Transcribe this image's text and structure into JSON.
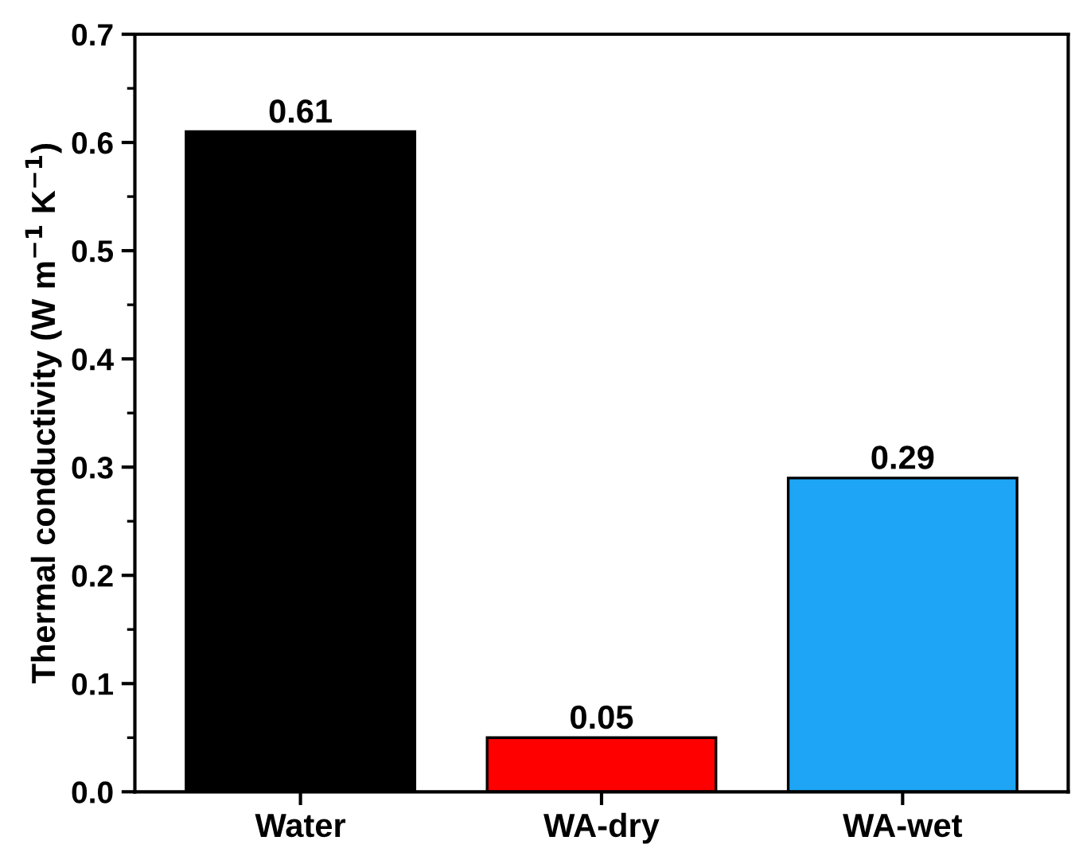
{
  "chart_data": {
    "type": "bar",
    "ylabel": "Thermal conductivity (W m$^{−1}$ K$^{−1}$)",
    "categories": [
      "Water",
      "WA-dry",
      "WA-wet"
    ],
    "values": [
      0.61,
      0.05,
      0.29
    ],
    "colors": [
      "#000000",
      "#ff0000",
      "#1ea5f5"
    ],
    "ylim": [
      0,
      0.7
    ],
    "yticks": [
      {
        "value": 0,
        "label": "0.0"
      },
      0.1,
      0.2,
      0.3,
      0.4,
      0.5,
      0.6,
      0.7
    ],
    "data_labels": true,
    "grid": false,
    "legend": false
  }
}
